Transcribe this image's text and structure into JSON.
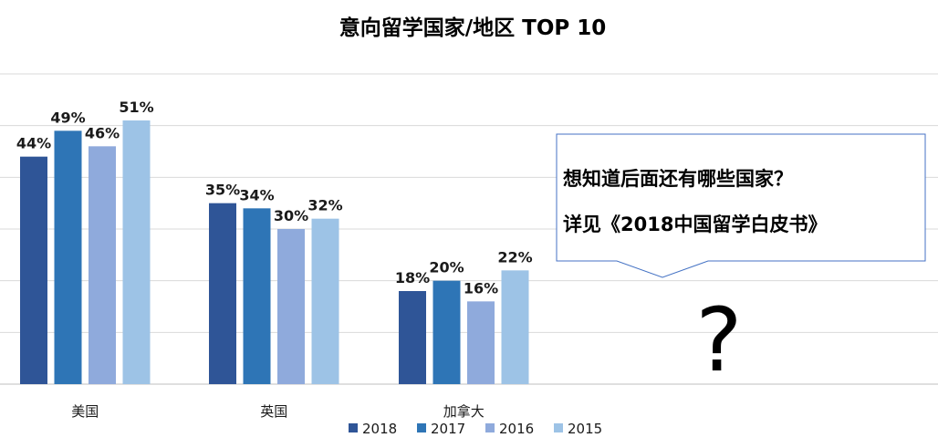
{
  "chart_data": {
    "type": "bar",
    "title": "意向留学国家/地区 TOP 10",
    "categories": [
      "美国",
      "英国",
      "加拿大"
    ],
    "series": [
      {
        "name": "2018",
        "values": [
          44,
          35,
          18
        ],
        "color": "#2f5597"
      },
      {
        "name": "2017",
        "values": [
          49,
          34,
          20
        ],
        "color": "#2e75b6"
      },
      {
        "name": "2016",
        "values": [
          46,
          30,
          16
        ],
        "color": "#8faadc"
      },
      {
        "name": "2015",
        "values": [
          51,
          32,
          22
        ],
        "color": "#9dc3e6"
      }
    ],
    "value_suffix": "%",
    "xlabel": "",
    "ylabel": "",
    "ylim": [
      0,
      60
    ],
    "grid": true,
    "legend": "bottom",
    "y_axis_labels_visible": false
  },
  "callout": {
    "line1": "想知道后面还有哪些国家？",
    "line2": "详见《2018中国留学白皮书》",
    "symbol": "?"
  },
  "colors": {
    "grid": "#d9d9d9",
    "axis": "#bfbfbf",
    "callout_border": "#4472c4"
  }
}
